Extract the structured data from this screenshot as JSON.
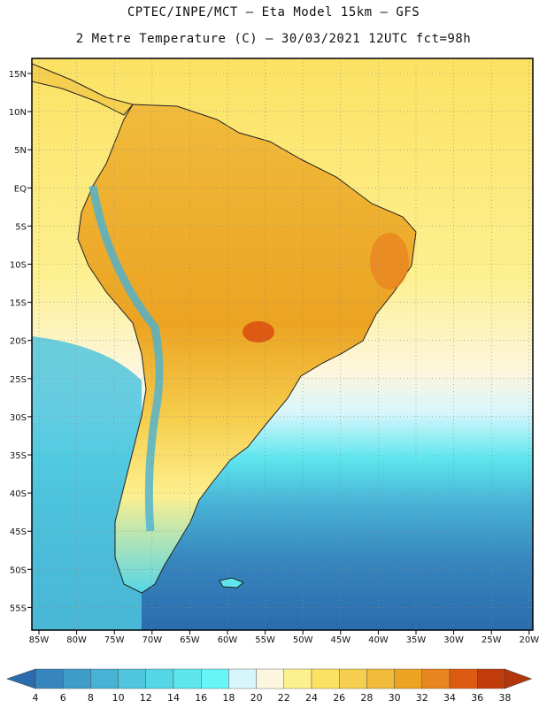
{
  "title": {
    "line1": "CPTEC/INPE/MCT –  Eta Model 15km – GFS",
    "line2": "2 Metre Temperature (C) – 30/03/2021 12UTC fct=98h"
  },
  "map": {
    "lat_labels": [
      "15N",
      "10N",
      "5N",
      "EQ",
      "5S",
      "10S",
      "15S",
      "20S",
      "25S",
      "30S",
      "35S",
      "40S",
      "45S",
      "50S",
      "55S"
    ],
    "lon_labels": [
      "85W",
      "80W",
      "75W",
      "70W",
      "65W",
      "60W",
      "55W",
      "50W",
      "45W",
      "40W",
      "35W",
      "30W",
      "25W",
      "20W"
    ]
  },
  "colorbar": {
    "labels": [
      "4",
      "6",
      "8",
      "10",
      "12",
      "14",
      "16",
      "18",
      "20",
      "22",
      "24",
      "26",
      "28",
      "30",
      "32",
      "34",
      "36",
      "38"
    ],
    "colors": [
      "#2a6cae",
      "#3685bd",
      "#3f9dc9",
      "#48b2d5",
      "#4fc5de",
      "#55d6e6",
      "#5de6ee",
      "#67f6f8",
      "#d7f6fb",
      "#fdf6df",
      "#fdf08f",
      "#fbe263",
      "#f6cf4f",
      "#f1bb3c",
      "#eca322",
      "#e8851f",
      "#dd5a13",
      "#c23b0a",
      "#b2350c"
    ]
  }
}
